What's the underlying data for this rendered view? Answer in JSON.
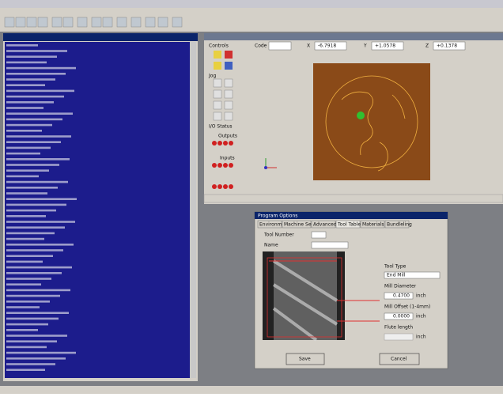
{
  "coords": {
    "code_label": "Code",
    "x_label": "X",
    "x_value": "-6.7918",
    "y_label": "Y",
    "y_value": "+1.0578",
    "z_label": "Z",
    "z_value": "+0.1378"
  },
  "panel": {
    "controls": "Controls",
    "jog": "Jog",
    "io_status": "I/O Status",
    "outputs": "Outputs",
    "inputs": "Inputs"
  },
  "dialog": {
    "title": "Program Options",
    "tabs": [
      "Environment",
      "Machine Setup",
      "Advanced NB",
      "Tool Table",
      "Materials",
      "Bundleling"
    ],
    "tool_number": "Tool Number",
    "name": "Name",
    "tool_type": "Tool Type",
    "tool_type_value": "End Mill",
    "mill_diameter": "Mill Diameter",
    "mill_diameter_value": "0.4700",
    "mill_offset": "Mill Offset (1-4mm)",
    "mill_offset_value": "0.0000",
    "flute_length": "Flute length",
    "unit": "inch",
    "save": "Save",
    "cancel": "Cancel"
  }
}
